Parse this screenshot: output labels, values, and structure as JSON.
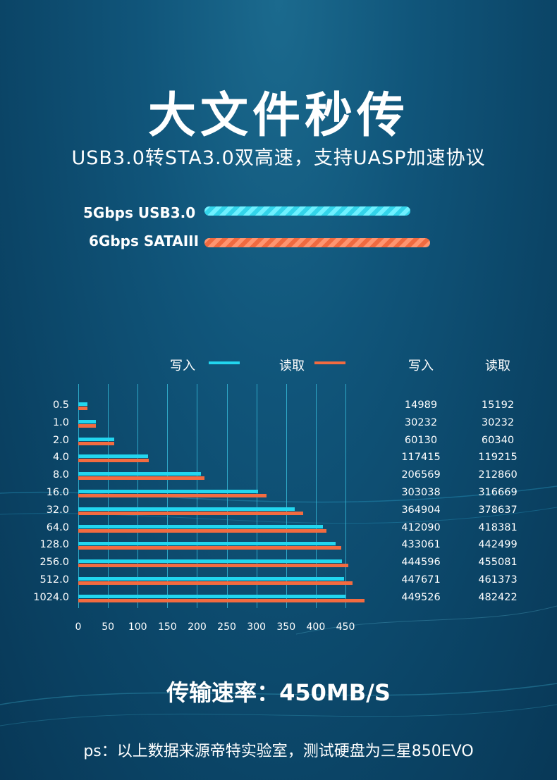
{
  "title": "大文件秒传",
  "subtitle": "USB3.0转STA3.0双高速，支持UASP加速协议",
  "interfaces": {
    "usb": {
      "label": "5Gbps USB3.0",
      "color": "#33d4ea"
    },
    "sata": {
      "label": "6Gbps SATAIII",
      "color": "#f06a40"
    }
  },
  "legend": {
    "write": "写入",
    "read": "读取"
  },
  "table_headers": {
    "write": "写入",
    "read": "读取"
  },
  "chart_data": {
    "type": "bar",
    "orientation": "horizontal",
    "categories": [
      "0.5",
      "1.0",
      "2.0",
      "4.0",
      "8.0",
      "16.0",
      "32.0",
      "64.0",
      "128.0",
      "256.0",
      "512.0",
      "1024.0"
    ],
    "series": [
      {
        "name": "写入",
        "color": "#22d6ef",
        "values": [
          14989,
          30232,
          60130,
          117415,
          206569,
          303038,
          364904,
          412090,
          433061,
          444596,
          447671,
          449526
        ],
        "labels": [
          "14989",
          "30232",
          "60130",
          "117415",
          "206569",
          "303038",
          "364904",
          "412090",
          "433061",
          "444596",
          "447671",
          "449526"
        ]
      },
      {
        "name": "读取",
        "color": "#f36b40",
        "values": [
          15192,
          30232,
          60340,
          119215,
          212860,
          316669,
          378637,
          418381,
          442499,
          455081,
          461373,
          482422
        ],
        "labels": [
          "15192",
          "30232",
          "60340",
          "119215",
          "212860",
          "316669",
          "378637",
          "418381",
          "442499",
          "455081",
          "461373",
          "482422"
        ]
      }
    ],
    "xticks": [
      "0",
      "50",
      "100",
      "150",
      "200",
      "250",
      "300",
      "350",
      "400",
      "450"
    ],
    "xlim": [
      0,
      450
    ],
    "grid": true,
    "legend_position": "top"
  },
  "speed_text": "传输速率：450MB/S",
  "note": "ps：以上数据来源帝特实验室，测试硬盘为三星850EVO"
}
